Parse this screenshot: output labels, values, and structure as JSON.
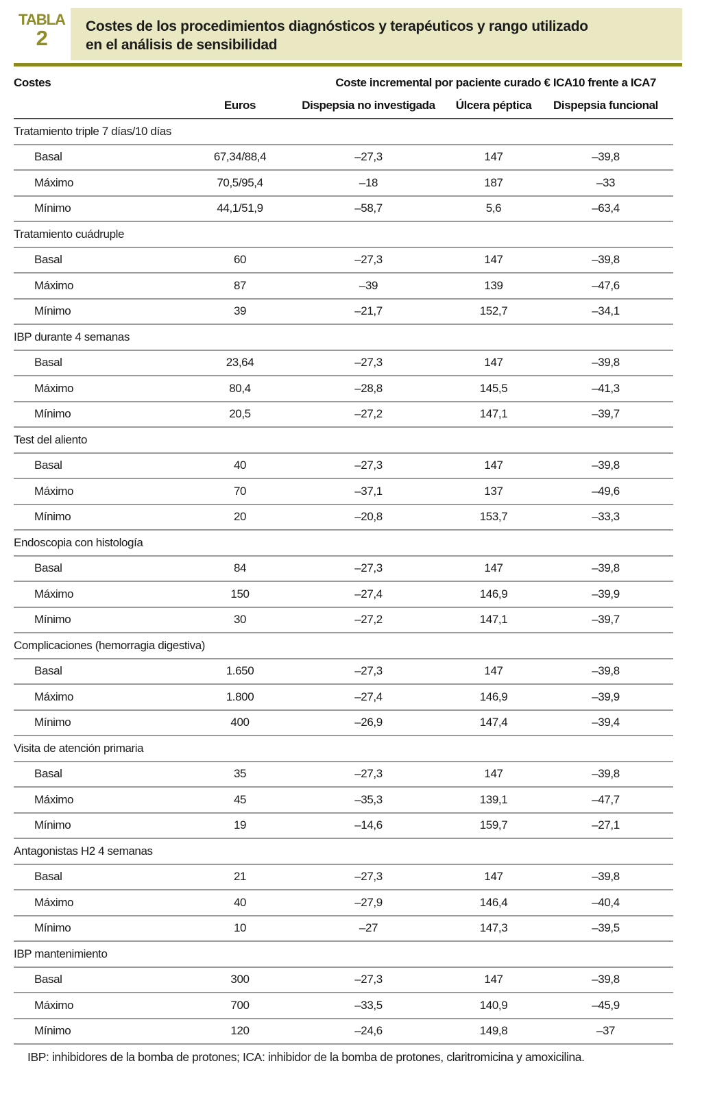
{
  "header": {
    "tag_word": "TABLA",
    "tag_number": "2",
    "title_line1": "Costes de los procedimientos diagnósticos y terapéuticos y rango utilizado",
    "title_line2": "en el análisis de sensibilidad"
  },
  "colors": {
    "olive_accent": "#8f8d27",
    "olive_rule": "#8a891c",
    "band_background": "#e9e8c3",
    "row_rule": "#9a9a9a",
    "header_rule": "#4b4b4b"
  },
  "table": {
    "group_header_left": "Costes",
    "group_header_right": "Coste incremental por paciente curado € ICA10 frente a ICA7",
    "column_headers": [
      "Euros",
      "Dispepsia no investigada",
      "Úlcera péptica",
      "Dispepsia funcional"
    ],
    "sections": [
      {
        "label": "Tratamiento triple 7 días/10 días",
        "rows": [
          {
            "label": "Basal",
            "values": [
              "67,34/88,4",
              "–27,3",
              "147",
              "–39,8"
            ]
          },
          {
            "label": "Máximo",
            "values": [
              "70,5/95,4",
              "–18",
              "187",
              "–33"
            ]
          },
          {
            "label": "Mínimo",
            "values": [
              "44,1/51,9",
              "–58,7",
              "5,6",
              "–63,4"
            ]
          }
        ]
      },
      {
        "label": "Tratamiento cuádruple",
        "rows": [
          {
            "label": "Basal",
            "values": [
              "60",
              "–27,3",
              "147",
              "–39,8"
            ]
          },
          {
            "label": "Máximo",
            "values": [
              "87",
              "–39",
              "139",
              "–47,6"
            ]
          },
          {
            "label": "Mínimo",
            "values": [
              "39",
              "–21,7",
              "152,7",
              "–34,1"
            ]
          }
        ]
      },
      {
        "label": "IBP durante 4 semanas",
        "rows": [
          {
            "label": "Basal",
            "values": [
              "23,64",
              "–27,3",
              "147",
              "–39,8"
            ]
          },
          {
            "label": "Máximo",
            "values": [
              "80,4",
              "–28,8",
              "145,5",
              "–41,3"
            ]
          },
          {
            "label": "Mínimo",
            "values": [
              "20,5",
              "–27,2",
              "147,1",
              "–39,7"
            ]
          }
        ]
      },
      {
        "label": "Test del aliento",
        "rows": [
          {
            "label": "Basal",
            "values": [
              "40",
              "–27,3",
              "147",
              "–39,8"
            ]
          },
          {
            "label": "Máximo",
            "values": [
              "70",
              "–37,1",
              "137",
              "–49,6"
            ]
          },
          {
            "label": "Mínimo",
            "values": [
              "20",
              "–20,8",
              "153,7",
              "–33,3"
            ]
          }
        ]
      },
      {
        "label": "Endoscopia con histología",
        "rows": [
          {
            "label": "Basal",
            "values": [
              "84",
              "–27,3",
              "147",
              "–39,8"
            ]
          },
          {
            "label": "Máximo",
            "values": [
              "150",
              "–27,4",
              "146,9",
              "–39,9"
            ]
          },
          {
            "label": "Mínimo",
            "values": [
              "30",
              "–27,2",
              "147,1",
              "–39,7"
            ]
          }
        ]
      },
      {
        "label": "Complicaciones (hemorragia digestiva)",
        "rows": [
          {
            "label": "Basal",
            "values": [
              "1.650",
              "–27,3",
              "147",
              "–39,8"
            ]
          },
          {
            "label": "Máximo",
            "values": [
              "1.800",
              "–27,4",
              "146,9",
              "–39,9"
            ]
          },
          {
            "label": "Mínimo",
            "values": [
              "400",
              "–26,9",
              "147,4",
              "–39,4"
            ]
          }
        ]
      },
      {
        "label": "Visita de atención primaria",
        "rows": [
          {
            "label": "Basal",
            "values": [
              "35",
              "–27,3",
              "147",
              "–39,8"
            ]
          },
          {
            "label": "Máximo",
            "values": [
              "45",
              "–35,3",
              "139,1",
              "–47,7"
            ]
          },
          {
            "label": "Mínimo",
            "values": [
              "19",
              "–14,6",
              "159,7",
              "–27,1"
            ]
          }
        ]
      },
      {
        "label": "Antagonistas H2 4 semanas",
        "rows": [
          {
            "label": "Basal",
            "values": [
              "21",
              "–27,3",
              "147",
              "–39,8"
            ]
          },
          {
            "label": "Máximo",
            "values": [
              "40",
              "–27,9",
              "146,4",
              "–40,4"
            ]
          },
          {
            "label": "Mínimo",
            "values": [
              "10",
              "–27",
              "147,3",
              "–39,5"
            ]
          }
        ]
      },
      {
        "label": "IBP mantenimiento",
        "rows": [
          {
            "label": "Basal",
            "values": [
              "300",
              "–27,3",
              "147",
              "–39,8"
            ]
          },
          {
            "label": "Máximo",
            "values": [
              "700",
              "–33,5",
              "140,9",
              "–45,9"
            ]
          },
          {
            "label": "Mínimo",
            "values": [
              "120",
              "–24,6",
              "149,8",
              "–37"
            ]
          }
        ]
      }
    ]
  },
  "footnote": "IBP: inhibidores de la bomba de protones; ICA: inhibidor de la bomba de protones, claritromicina y amoxicilina."
}
